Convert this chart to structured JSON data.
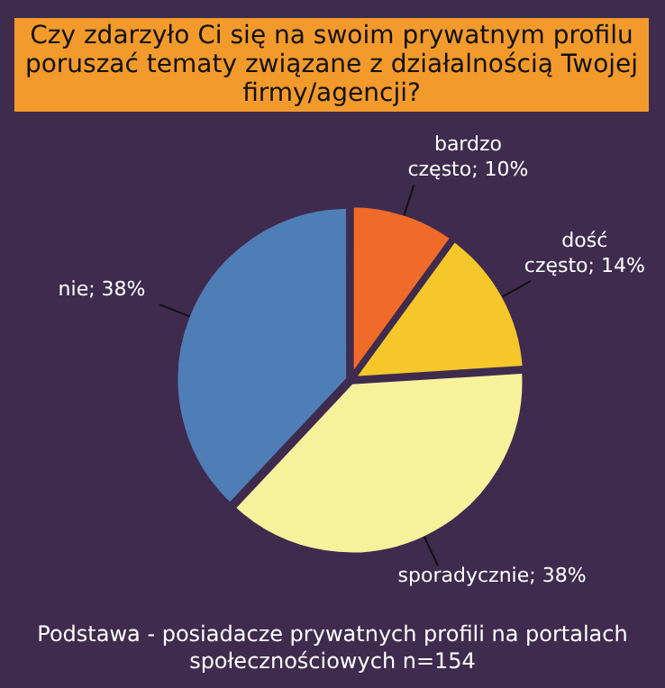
{
  "chart_data": {
    "type": "pie",
    "title": "Czy zdarzyło Ci się na swoim prywatnym profilu poruszać tematy związane z działalnością Twojej firmy/agencji?",
    "categories": [
      "bardzo często",
      "dość często",
      "sporadycznie",
      "nie"
    ],
    "values": [
      10,
      14,
      38,
      38
    ],
    "value_labels": [
      "10%",
      "14%",
      "38%",
      "38%"
    ],
    "colors": [
      "#f06a2a",
      "#f5c72a",
      "#f6f29c",
      "#4f7db6"
    ],
    "legend": false,
    "annotations": [
      "Podstawa - posiadacze prywatnych profili na portalach społecznościowych n=154"
    ]
  }
}
